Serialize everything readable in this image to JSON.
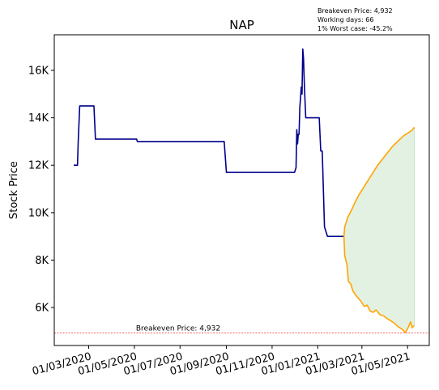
{
  "chart_data": {
    "type": "line",
    "title": "NAP",
    "xlabel": "",
    "ylabel": "Stock Price",
    "annotation_lines": [
      "Breakeven Price: 4,932",
      "Working days: 66",
      "1% Worst case: -45.2%"
    ],
    "breakeven": {
      "value": 4932,
      "label": "Breakeven Price: 4,932",
      "color": "#ff0000"
    },
    "ylim": [
      4400,
      17500
    ],
    "y_ticks": [
      {
        "value": 6000,
        "label": "6K"
      },
      {
        "value": 8000,
        "label": "8K"
      },
      {
        "value": 10000,
        "label": "10K"
      },
      {
        "value": 12000,
        "label": "12K"
      },
      {
        "value": 14000,
        "label": "14K"
      },
      {
        "value": 16000,
        "label": "16K"
      }
    ],
    "xlim": [
      "2020-01-15",
      "2021-05-30"
    ],
    "x_ticks": [
      {
        "date": "2020-03-01",
        "label": "01/03/2020"
      },
      {
        "date": "2020-05-01",
        "label": "01/05/2020"
      },
      {
        "date": "2020-07-01",
        "label": "01/07/2020"
      },
      {
        "date": "2020-09-01",
        "label": "01/09/2020"
      },
      {
        "date": "2020-11-01",
        "label": "01/11/2020"
      },
      {
        "date": "2021-01-01",
        "label": "01/01/2021"
      },
      {
        "date": "2021-03-01",
        "label": "01/03/2021"
      },
      {
        "date": "2021-05-01",
        "label": "01/05/2021"
      }
    ],
    "colors": {
      "history": "#00008b",
      "bands": "#ffa500",
      "fill": "#c8e3c8"
    },
    "series": [
      {
        "key": "history",
        "points": [
          [
            "2020-02-10",
            12000
          ],
          [
            "2020-02-15",
            12000
          ],
          [
            "2020-02-16",
            13000
          ],
          [
            "2020-02-18",
            14500
          ],
          [
            "2020-03-08",
            14500
          ],
          [
            "2020-03-10",
            13100
          ],
          [
            "2020-05-04",
            13100
          ],
          [
            "2020-05-05",
            13000
          ],
          [
            "2020-08-29",
            13000
          ],
          [
            "2020-09-01",
            11700
          ],
          [
            "2020-12-01",
            11700
          ],
          [
            "2020-12-03",
            11900
          ],
          [
            "2020-12-04",
            13500
          ],
          [
            "2020-12-05",
            12900
          ],
          [
            "2020-12-06",
            13300
          ],
          [
            "2020-12-07",
            13300
          ],
          [
            "2020-12-08",
            14400
          ],
          [
            "2020-12-10",
            15300
          ],
          [
            "2020-12-11",
            15000
          ],
          [
            "2020-12-12",
            16900
          ],
          [
            "2020-12-13",
            16500
          ],
          [
            "2020-12-14",
            15500
          ],
          [
            "2020-12-15",
            14700
          ],
          [
            "2020-12-16",
            14000
          ],
          [
            "2021-01-03",
            14000
          ],
          [
            "2021-01-05",
            12600
          ],
          [
            "2021-01-07",
            12600
          ],
          [
            "2021-01-10",
            9400
          ],
          [
            "2021-01-12",
            9200
          ],
          [
            "2021-01-14",
            9000
          ],
          [
            "2021-02-05",
            9000
          ]
        ]
      },
      {
        "key": "upper",
        "points": [
          [
            "2021-02-05",
            9000
          ],
          [
            "2021-02-06",
            9400
          ],
          [
            "2021-02-10",
            9800
          ],
          [
            "2021-02-15",
            10100
          ],
          [
            "2021-02-20",
            10450
          ],
          [
            "2021-02-25",
            10750
          ],
          [
            "2021-03-02",
            11000
          ],
          [
            "2021-03-07",
            11250
          ],
          [
            "2021-03-12",
            11500
          ],
          [
            "2021-03-17",
            11750
          ],
          [
            "2021-03-22",
            12000
          ],
          [
            "2021-03-27",
            12200
          ],
          [
            "2021-04-01",
            12400
          ],
          [
            "2021-04-06",
            12600
          ],
          [
            "2021-04-11",
            12800
          ],
          [
            "2021-04-16",
            12950
          ],
          [
            "2021-04-21",
            13100
          ],
          [
            "2021-04-26",
            13250
          ],
          [
            "2021-05-01",
            13350
          ],
          [
            "2021-05-06",
            13450
          ],
          [
            "2021-05-10",
            13600
          ]
        ]
      },
      {
        "key": "lower",
        "points": [
          [
            "2021-02-05",
            9000
          ],
          [
            "2021-02-06",
            8200
          ],
          [
            "2021-02-09",
            7800
          ],
          [
            "2021-02-11",
            7100
          ],
          [
            "2021-02-14",
            7000
          ],
          [
            "2021-02-17",
            6700
          ],
          [
            "2021-02-20",
            6550
          ],
          [
            "2021-02-24",
            6400
          ],
          [
            "2021-02-28",
            6250
          ],
          [
            "2021-03-04",
            6050
          ],
          [
            "2021-03-08",
            6100
          ],
          [
            "2021-03-12",
            5850
          ],
          [
            "2021-03-16",
            5800
          ],
          [
            "2021-03-20",
            5900
          ],
          [
            "2021-03-25",
            5700
          ],
          [
            "2021-03-30",
            5650
          ],
          [
            "2021-04-03",
            5550
          ],
          [
            "2021-04-08",
            5450
          ],
          [
            "2021-04-13",
            5350
          ],
          [
            "2021-04-18",
            5200
          ],
          [
            "2021-04-23",
            5100
          ],
          [
            "2021-04-28",
            4950
          ],
          [
            "2021-05-01",
            5100
          ],
          [
            "2021-05-03",
            5250
          ],
          [
            "2021-05-05",
            5400
          ],
          [
            "2021-05-07",
            5150
          ],
          [
            "2021-05-10",
            5250
          ]
        ]
      }
    ]
  }
}
